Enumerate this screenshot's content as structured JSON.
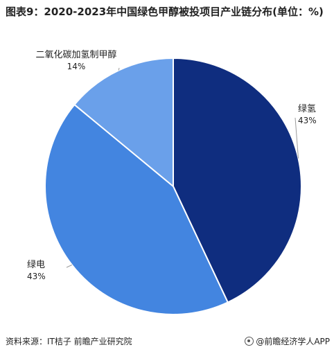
{
  "title": "图表9：2020-2023年中国绿色甲醇被投项目产业链分布(单位：%)",
  "chart_data": {
    "type": "pie",
    "title": "图表9：2020-2023年中国绿色甲醇被投项目产业链分布(单位：%)",
    "unit": "%",
    "slices": [
      {
        "label": "绿氢",
        "value": 43,
        "value_label": "43%",
        "color": "#0f2d7f"
      },
      {
        "label": "绿电",
        "value": 43,
        "value_label": "43%",
        "color": "#4385e0"
      },
      {
        "label": "二氧化碳加氢制甲醇",
        "value": 14,
        "value_label": "14%",
        "color": "#6aa0ea"
      }
    ]
  },
  "footer": {
    "source": "资料来源：IT桔子 前瞻产业研究院",
    "brand": "@前瞻经济学人APP"
  },
  "watermark": "前瞻产业研究院"
}
